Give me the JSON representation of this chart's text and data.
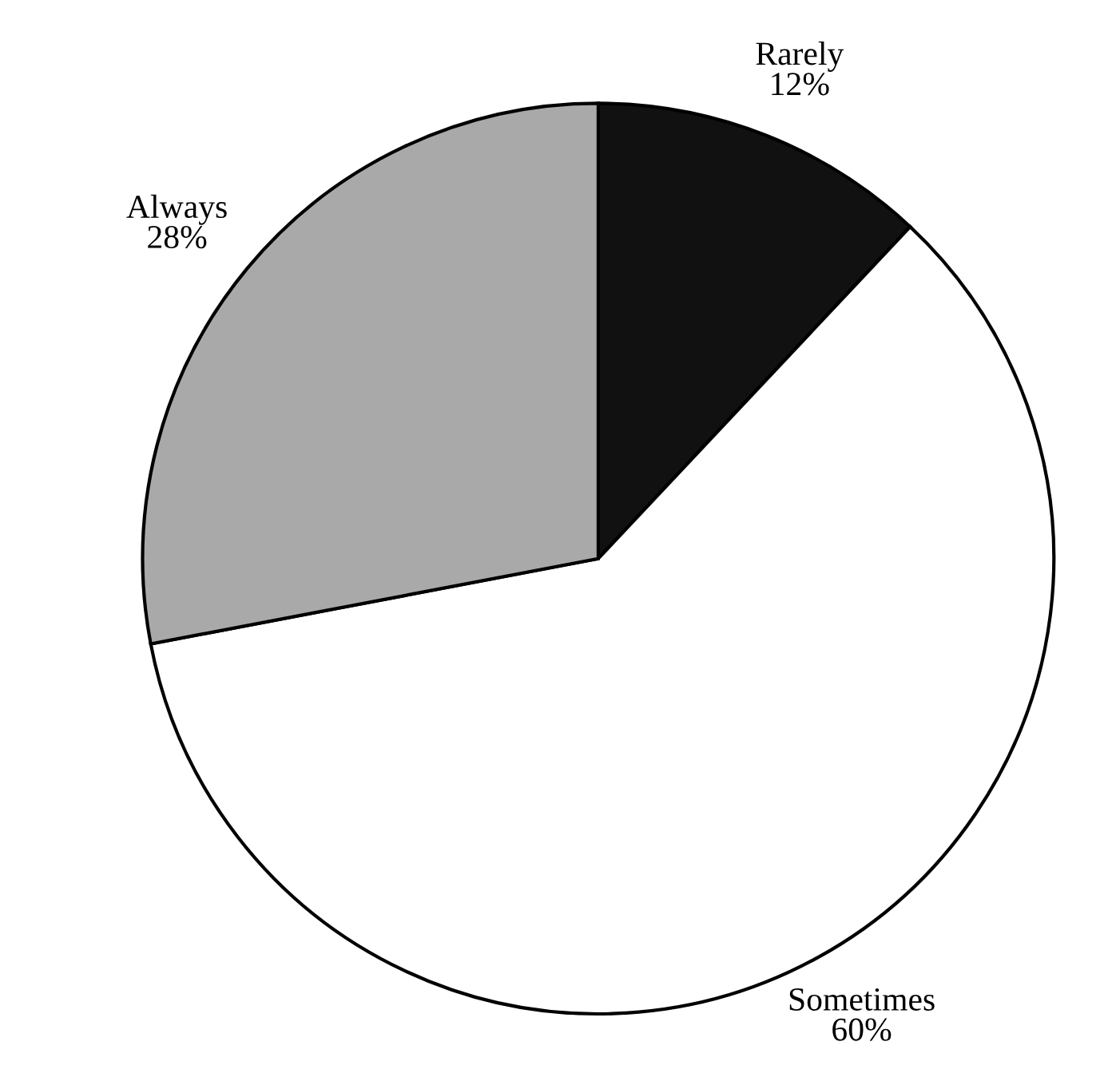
{
  "chart_data": {
    "type": "pie",
    "categories": [
      "Rarely",
      "Sometimes",
      "Always"
    ],
    "values": [
      12,
      60,
      28
    ],
    "value_labels": [
      "12%",
      "60%",
      "28%"
    ],
    "colors": [
      "#111111",
      "#ffffff",
      "#a9a9a9"
    ]
  }
}
